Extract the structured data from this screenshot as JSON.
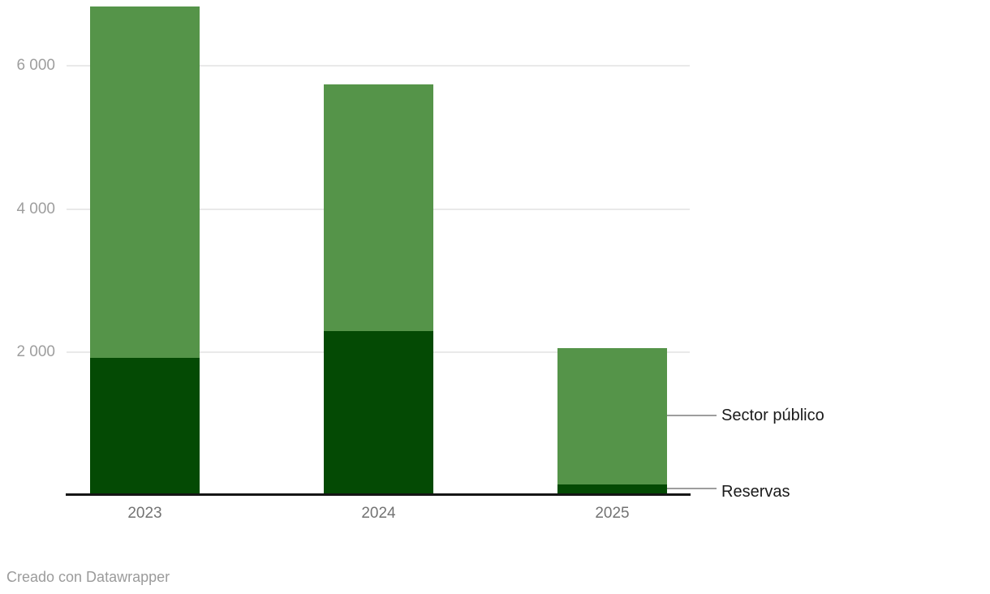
{
  "chart_data": {
    "type": "bar",
    "stacked": true,
    "title": "",
    "xlabel": "",
    "ylabel": "",
    "categories": [
      "2023",
      "2024",
      "2025"
    ],
    "series": [
      {
        "name": "Reservas",
        "color": "#044a04",
        "values": [
          1920,
          2300,
          150
        ]
      },
      {
        "name": "Sector público",
        "color": "#559449",
        "values": [
          4910,
          3440,
          1910
        ]
      }
    ],
    "totals": [
      6830,
      5740,
      2060
    ],
    "y_axis": {
      "range": [
        0,
        6900
      ],
      "grid": true,
      "ticks": [
        {
          "value": 2000,
          "label": "2 000"
        },
        {
          "value": 4000,
          "label": "4 000"
        },
        {
          "value": 6000,
          "label": "6 000"
        }
      ]
    },
    "legend": {
      "position": "right-of-last-bar",
      "entries": [
        {
          "label": "Sector público",
          "series": "Sector público"
        },
        {
          "label": "Reservas",
          "series": "Reservas"
        }
      ]
    }
  },
  "footer": {
    "credit": "Creado con Datawrapper"
  },
  "colors": {
    "sector_publico": "#559449",
    "reservas": "#044a04",
    "grid": "#e9e9e9",
    "axis": "#161616",
    "y_tick_label": "#9e9e9e",
    "x_label": "#737373",
    "legend_text": "#1a1a1a",
    "legend_line": "#9d9d9d",
    "footer_text": "#9b9b9b"
  }
}
